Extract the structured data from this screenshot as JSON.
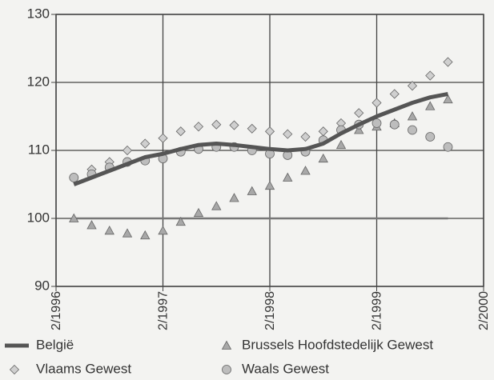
{
  "chart_data": {
    "type": "line",
    "x": [
      2,
      4,
      6,
      8,
      10,
      12,
      14,
      16,
      18,
      20,
      22,
      24,
      26,
      28,
      30,
      32,
      34,
      36,
      38,
      40,
      42,
      44
    ],
    "xlim": [
      0,
      48
    ],
    "xticks": [
      {
        "value": 0,
        "label": "2/1996"
      },
      {
        "value": 12,
        "label": "2/1997"
      },
      {
        "value": 24,
        "label": "2/1998"
      },
      {
        "value": 36,
        "label": "2/1999"
      },
      {
        "value": 48,
        "label": "2/2000"
      }
    ],
    "ylim": [
      90,
      130
    ],
    "yticks": [
      90,
      100,
      110,
      120,
      130
    ],
    "grid": true,
    "reference_line": 100,
    "series": [
      {
        "name": "België",
        "marker": "line",
        "color": "#555555",
        "values": [
          105,
          106,
          107,
          108,
          109,
          109.5,
          110.2,
          110.8,
          111,
          110.8,
          110.5,
          110.2,
          110,
          110.2,
          111,
          112.5,
          113.8,
          115,
          116,
          117,
          117.8,
          118.3
        ]
      },
      {
        "name": "Brussels Hoofdstedelijk Gewest",
        "marker": "triangle",
        "color": "#a8a8a8",
        "values": [
          100,
          99,
          98.2,
          97.8,
          97.5,
          98.2,
          99.5,
          100.8,
          101.8,
          103,
          104,
          104.8,
          106,
          107,
          108.8,
          110.8,
          113,
          113.5,
          114,
          115,
          116.5,
          117.5
        ]
      },
      {
        "name": "Vlaams Gewest",
        "marker": "diamond",
        "color": "#cfcfcf",
        "values": [
          106,
          107.2,
          108.3,
          110,
          111,
          111.8,
          112.8,
          113.5,
          113.8,
          113.7,
          113.2,
          112.8,
          112.4,
          112,
          112.8,
          114,
          115.5,
          117,
          118.3,
          119.5,
          121,
          123
        ]
      },
      {
        "name": "Waals Gewest",
        "marker": "circle",
        "color": "#bdbdbd",
        "values": [
          106,
          106.5,
          107.5,
          108.3,
          108.5,
          108.8,
          109.8,
          110.2,
          110.5,
          110.5,
          110,
          109.5,
          109.3,
          109.8,
          111.5,
          113,
          113.8,
          114,
          113.8,
          113,
          112,
          110.5
        ]
      }
    ]
  }
}
